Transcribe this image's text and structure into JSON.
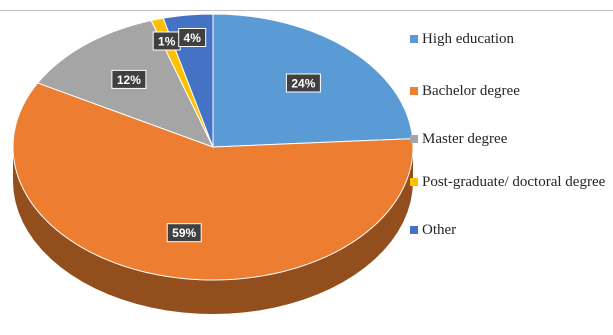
{
  "chart_data": {
    "type": "pie",
    "style": "3d",
    "title": "",
    "legend_position": "right",
    "slices": [
      {
        "label": "High education",
        "value": 24,
        "display": "24%",
        "color": "#5b9bd5"
      },
      {
        "label": "Bachelor degree",
        "value": 59,
        "display": "59%",
        "color": "#ed7d31"
      },
      {
        "label": "Master degree",
        "value": 12,
        "display": "12%",
        "color": "#a5a5a5"
      },
      {
        "label": "Post-graduate/ doctoral degree",
        "value": 1,
        "display": "1%",
        "color": "#ffc000"
      },
      {
        "label": "Other",
        "value": 4,
        "display": "4%",
        "color": "#4472c4"
      }
    ]
  }
}
